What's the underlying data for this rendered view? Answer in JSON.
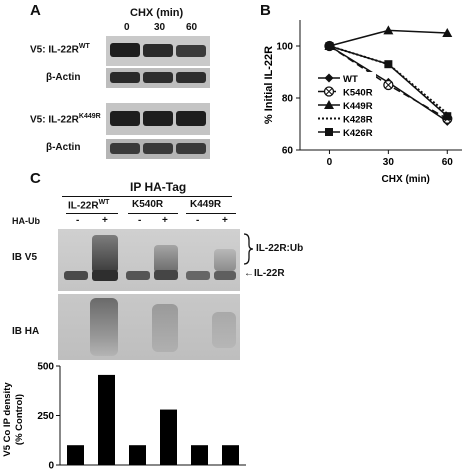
{
  "panelA": {
    "letter": "A",
    "header": "CHX (min)",
    "times": [
      "0",
      "30",
      "60"
    ],
    "blot1_label": "V5: IL-22R",
    "blot1_sup": "WT",
    "blot2_label": "β-Actin",
    "blot3_label": "V5: IL-22R",
    "blot3_sup": "K449R",
    "blot4_label": "β-Actin"
  },
  "panelB": {
    "letter": "B",
    "chart_data": {
      "type": "line",
      "x": [
        0,
        30,
        60
      ],
      "xticks": [
        "0",
        "30",
        "60"
      ],
      "xlabel": "CHX (min)",
      "ylabel": "% Initial IL-22R",
      "ylim": [
        60,
        110
      ],
      "yticks": [
        60,
        80,
        100
      ],
      "legend_position": "left",
      "series": [
        {
          "name": "WT",
          "values": [
            100,
            86,
            71
          ],
          "marker": "diamond",
          "line": "solid"
        },
        {
          "name": "K540R",
          "values": [
            100,
            85,
            72
          ],
          "marker": "circle-x",
          "line": "dashed"
        },
        {
          "name": "K449R",
          "values": [
            100,
            106,
            105
          ],
          "marker": "triangle",
          "line": "solid"
        },
        {
          "name": "K428R",
          "values": [
            100,
            93,
            74
          ],
          "marker": "none",
          "line": "dotted"
        },
        {
          "name": "K426R",
          "values": [
            100,
            93,
            73
          ],
          "marker": "square",
          "line": "solid"
        }
      ]
    }
  },
  "panelC": {
    "letter": "C",
    "ip_title": "IP HA-Tag",
    "groups": [
      {
        "label": "IL-22R",
        "sup": "WT"
      },
      {
        "label": "K540R",
        "sup": ""
      },
      {
        "label": "K449R",
        "sup": ""
      }
    ],
    "ha_ub_label": "HA-Ub",
    "signs": [
      "-",
      "+",
      "-",
      "+",
      "-",
      "+"
    ],
    "ib_v5_label": "IB V5",
    "ib_ha_label": "IB HA",
    "ubiq_label": "IL-22R:Ub",
    "il22r_label": "IL-22R",
    "chart_data": {
      "type": "bar",
      "categories": [
        "WT -",
        "WT +",
        "K540R -",
        "K540R +",
        "K449R -",
        "K449R +"
      ],
      "values": [
        100,
        455,
        100,
        280,
        100,
        100
      ],
      "ylabel": "V5 Co IP density\n(% Control)",
      "ylim": [
        0,
        500
      ],
      "yticks": [
        0,
        250,
        500
      ]
    }
  }
}
